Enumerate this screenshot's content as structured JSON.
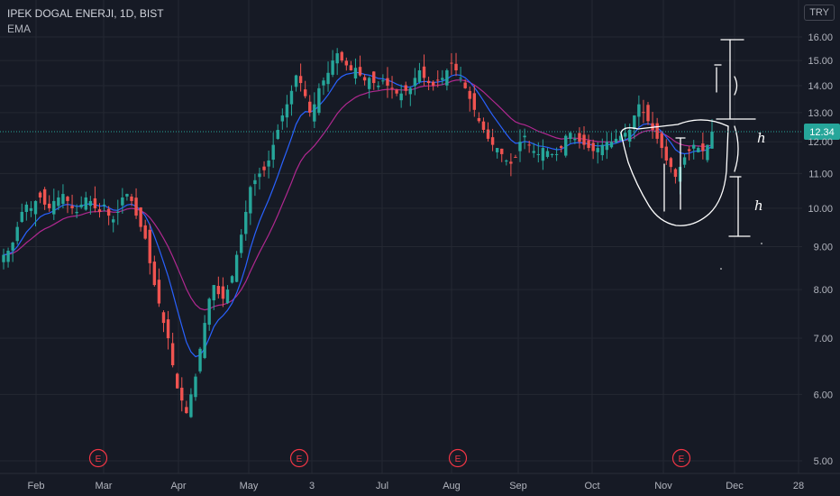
{
  "header": {
    "title": "IPEK DOGAL ENERJI, 1D, BIST",
    "indicator": "EMA",
    "currency_button": "TRY"
  },
  "colors": {
    "background": "#161a25",
    "up": "#26a69a",
    "down": "#ef5350",
    "ema_fast": "#2962ff",
    "ema_slow": "#b02890",
    "grid": "#242832",
    "price_line": "#26a69a",
    "price_label_bg": "#26a69a",
    "annotation": "#ffffff",
    "earnings": "#f23645"
  },
  "chart_data": {
    "type": "candlestick",
    "title": "IPEK DOGAL ENERJI, 1D, BIST",
    "currency": "TRY",
    "grid": true,
    "y_scale": "log",
    "ylim": [
      4.9,
      16.3
    ],
    "y_ticks": [
      "16.00",
      "15.00",
      "14.00",
      "13.00",
      "12.00",
      "11.00",
      "10.00",
      "9.00",
      "8.00",
      "7.00",
      "6.00",
      "5.00"
    ],
    "x_ticks": [
      "Feb",
      "Mar",
      "Apr",
      "May",
      "3",
      "Jul",
      "Aug",
      "Sep",
      "Oct",
      "Nov",
      "Dec",
      "28"
    ],
    "last_price": 12.34,
    "last_price_label": "12.34",
    "earnings_marker": "E",
    "earnings_count": 4,
    "annotation_letter": "h",
    "annotation_letter_count": 2,
    "ohlc_closes": [
      8.8,
      8.9,
      9.1,
      9.5,
      9.9,
      10.1,
      10.0,
      10.2,
      10.3,
      10.1,
      10.0,
      10.2,
      10.3,
      10.4,
      10.2,
      10.0,
      9.9,
      10.1,
      10.3,
      10.2,
      10.0,
      9.9,
      10.1,
      9.8,
      9.7,
      9.9,
      10.3,
      10.4,
      10.2,
      9.8,
      9.5,
      9.2,
      8.6,
      8.1,
      7.7,
      7.3,
      7.0,
      6.5,
      6.1,
      5.9,
      5.7,
      6.0,
      6.3,
      6.8,
      7.3,
      7.8,
      8.1,
      7.9,
      7.8,
      8.0,
      8.3,
      8.8,
      9.3,
      9.9,
      10.6,
      10.8,
      11.0,
      11.1,
      11.4,
      11.9,
      12.4,
      12.9,
      13.3,
      13.8,
      14.4,
      14.1,
      13.6,
      13.0,
      13.3,
      13.9,
      14.2,
      14.5,
      15.0,
      15.3,
      15.0,
      14.8,
      14.6,
      14.7,
      14.4,
      14.2,
      14.3,
      14.1,
      14.0,
      14.2,
      14.0,
      13.9,
      13.7,
      13.7,
      13.8,
      13.9,
      14.3,
      14.6,
      14.3,
      14.1,
      14.0,
      14.2,
      14.3,
      14.6,
      14.9,
      14.6,
      14.3,
      13.9,
      13.5,
      13.1,
      12.7,
      12.4,
      12.1,
      11.9,
      11.8,
      11.6,
      11.4,
      11.3,
      11.5,
      12.0,
      12.2,
      11.9,
      11.7,
      11.6,
      11.8,
      11.7,
      11.6,
      11.6,
      11.8,
      12.2,
      12.3,
      12.1,
      12.0,
      11.9,
      11.8,
      11.7,
      11.8,
      11.9,
      12.0,
      12.0,
      12.1,
      12.2,
      12.3,
      12.4,
      12.9,
      13.3,
      13.0,
      12.7,
      12.4,
      12.1,
      11.8,
      11.4,
      11.2,
      10.9,
      11.2,
      11.5,
      11.7,
      11.9,
      11.8,
      11.7,
      11.9,
      12.34
    ],
    "series": [
      {
        "name": "EMA",
        "role": "fast"
      },
      {
        "name": "EMA",
        "role": "slow"
      }
    ]
  }
}
